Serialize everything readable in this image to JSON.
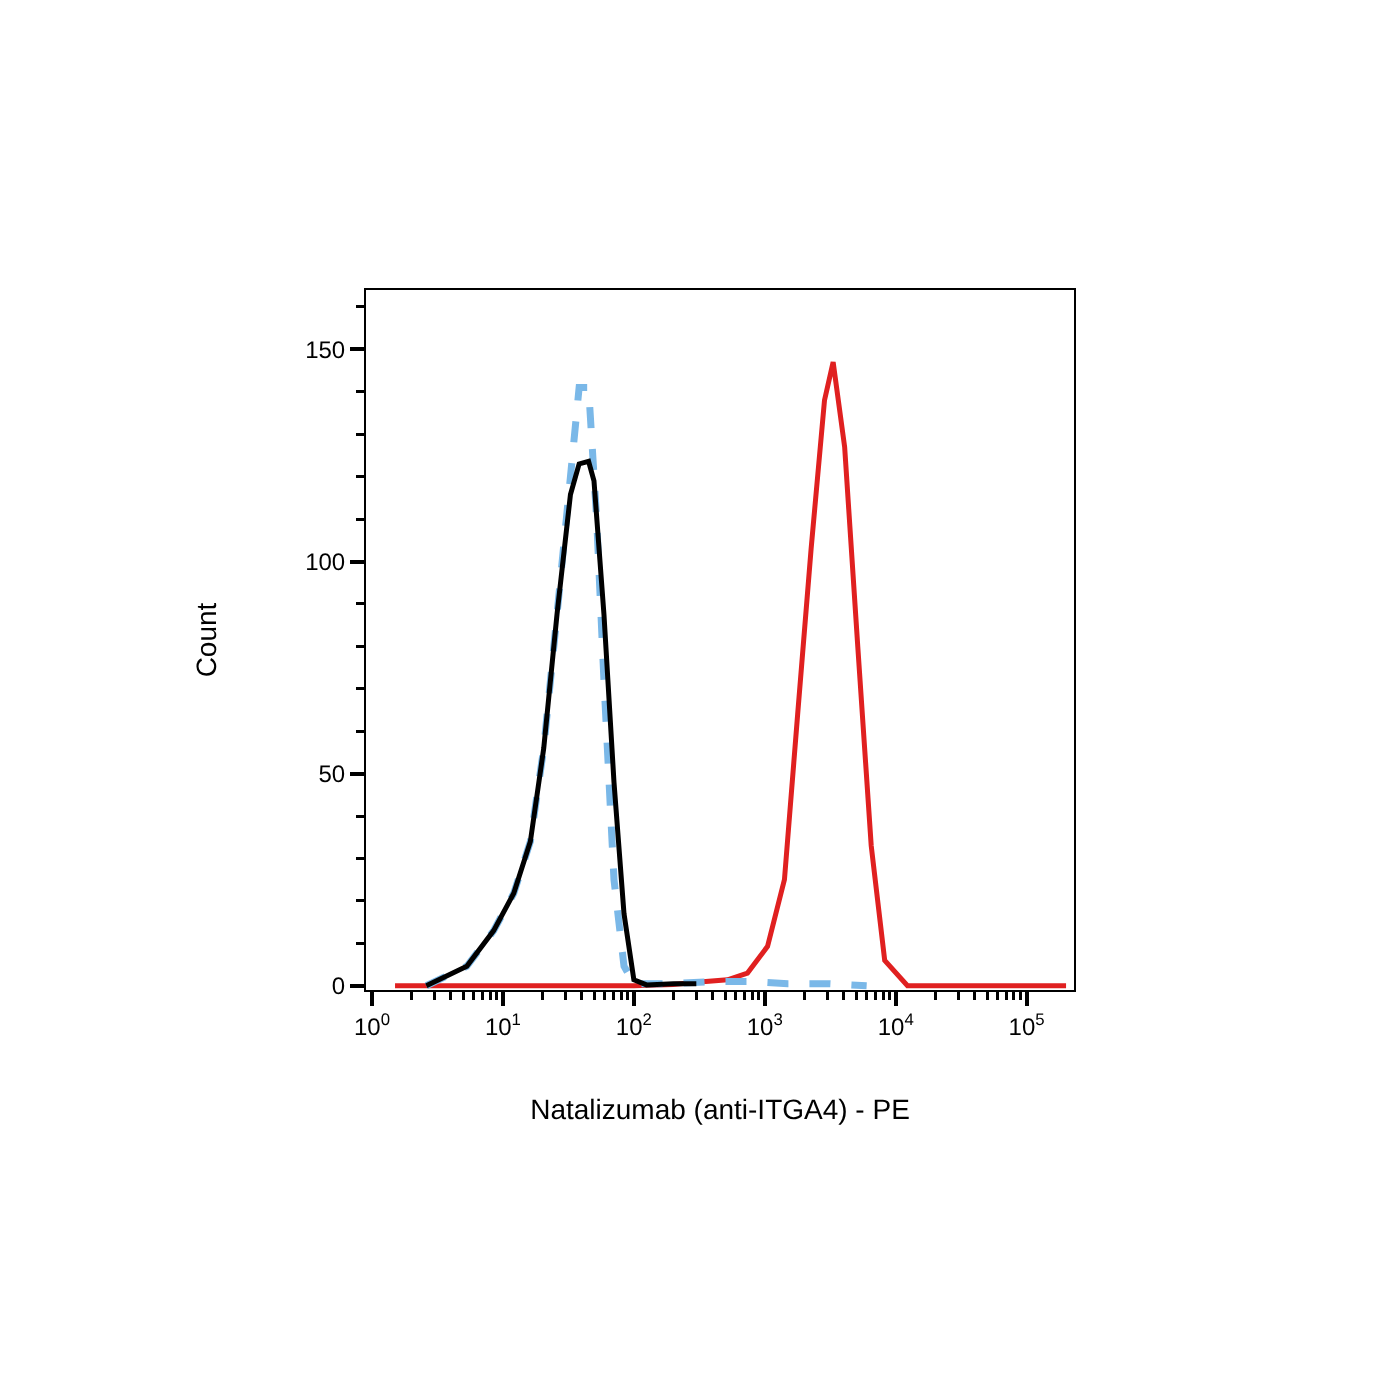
{
  "chart_data": {
    "type": "line",
    "xlabel": "Natalizumab (anti-ITGA4) - PE",
    "ylabel": "Count",
    "log": "x",
    "marker": "none",
    "xlim": [
      0.9,
      230000
    ],
    "xticks": [
      {
        "value": 1,
        "label": "10$^{0}$"
      },
      {
        "value": 2,
        "label": null
      },
      {
        "value": 3,
        "label": null
      },
      {
        "value": 4,
        "label": null
      },
      {
        "value": 5,
        "label": null
      },
      {
        "value": 6,
        "label": null
      },
      {
        "value": 7,
        "label": null
      },
      {
        "value": 8,
        "label": null
      },
      {
        "value": 9,
        "label": null
      },
      {
        "value": 10,
        "label": "10$^{1}$"
      },
      {
        "value": 20,
        "label": null
      },
      {
        "value": 30,
        "label": null
      },
      {
        "value": 40,
        "label": null
      },
      {
        "value": 50,
        "label": null
      },
      {
        "value": 60,
        "label": null
      },
      {
        "value": 70,
        "label": null
      },
      {
        "value": 80,
        "label": null
      },
      {
        "value": 90,
        "label": null
      },
      {
        "value": 100,
        "label": "10$^{2}$"
      },
      {
        "value": 200,
        "label": null
      },
      {
        "value": 300,
        "label": null
      },
      {
        "value": 400,
        "label": null
      },
      {
        "value": 500,
        "label": null
      },
      {
        "value": 600,
        "label": null
      },
      {
        "value": 700,
        "label": null
      },
      {
        "value": 800,
        "label": null
      },
      {
        "value": 900,
        "label": null
      },
      {
        "value": 1000,
        "label": "10$^{3}$"
      },
      {
        "value": 2000,
        "label": null
      },
      {
        "value": 3000,
        "label": null
      },
      {
        "value": 4000,
        "label": null
      },
      {
        "value": 5000,
        "label": null
      },
      {
        "value": 6000,
        "label": null
      },
      {
        "value": 7000,
        "label": null
      },
      {
        "value": 8000,
        "label": null
      },
      {
        "value": 9000,
        "label": null
      },
      {
        "value": 10000,
        "label": "10$^{4}$"
      },
      {
        "value": 20000,
        "label": null
      },
      {
        "value": 30000,
        "label": null
      },
      {
        "value": 40000,
        "label": null
      },
      {
        "value": 50000,
        "label": null
      },
      {
        "value": 60000,
        "label": null
      },
      {
        "value": 70000,
        "label": null
      },
      {
        "value": 80000,
        "label": null
      },
      {
        "value": 90000,
        "label": null
      },
      {
        "value": 100000,
        "label": "10$^{5}$"
      }
    ],
    "ylim": [
      -1,
      164
    ],
    "yticks": [
      0,
      {
        "value": 10,
        "label": null
      },
      {
        "value": 20,
        "label": null
      },
      {
        "value": 30,
        "label": null
      },
      {
        "value": 40,
        "label": null
      },
      50,
      {
        "value": 60,
        "label": null
      },
      {
        "value": 70,
        "label": null
      },
      {
        "value": 80,
        "label": null
      },
      {
        "value": 90,
        "label": null
      },
      100,
      {
        "value": 110,
        "label": null
      },
      {
        "value": 120,
        "label": null
      },
      {
        "value": 130,
        "label": null
      },
      {
        "value": 140,
        "label": null
      },
      150,
      {
        "value": 160,
        "label": null
      }
    ],
    "series": [
      {
        "color": "#e02020",
        "line_style": "solid",
        "x": [
          1.5,
          100,
          200,
          300,
          519,
          738,
          1050,
          1413,
          1783,
          2259,
          2858,
          3327,
          4074,
          5130,
          6500,
          8240,
          12300,
          200000
        ],
        "values": [
          0,
          0,
          0.3,
          0.8,
          1.4,
          3,
          9.3,
          25,
          64,
          103,
          138,
          147,
          127,
          80,
          33,
          6,
          0,
          0
        ]
      },
      {
        "color": "#7ab8e8",
        "line_style": "dashed",
        "x": [
          2.6,
          5.3,
          8.5,
          12.1,
          16.2,
          20.5,
          25.9,
          32.8,
          38.2,
          45.1,
          52,
          59.1,
          70.5,
          84.1,
          100,
          200,
          400,
          800,
          1500,
          3000,
          6000
        ],
        "values": [
          0,
          4.6,
          13,
          21.8,
          34,
          56,
          87.6,
          120,
          141,
          141,
          110,
          72,
          25,
          4.6,
          0.5,
          0.5,
          1,
          1,
          0.5,
          0.5,
          0
        ]
      },
      {
        "color": "#000000",
        "line_style": "solid",
        "x": [
          2.6,
          5.3,
          8.5,
          12.1,
          16.2,
          20.5,
          25.9,
          32.8,
          38.2,
          45.1,
          49.6,
          59.1,
          70.5,
          84.1,
          100,
          125,
          200,
          300
        ],
        "values": [
          0,
          4.6,
          13,
          21.8,
          34,
          56,
          87.6,
          115.8,
          123,
          123.6,
          119,
          87.6,
          48,
          17,
          1.4,
          0.2,
          0.5,
          0.5
        ]
      }
    ]
  }
}
